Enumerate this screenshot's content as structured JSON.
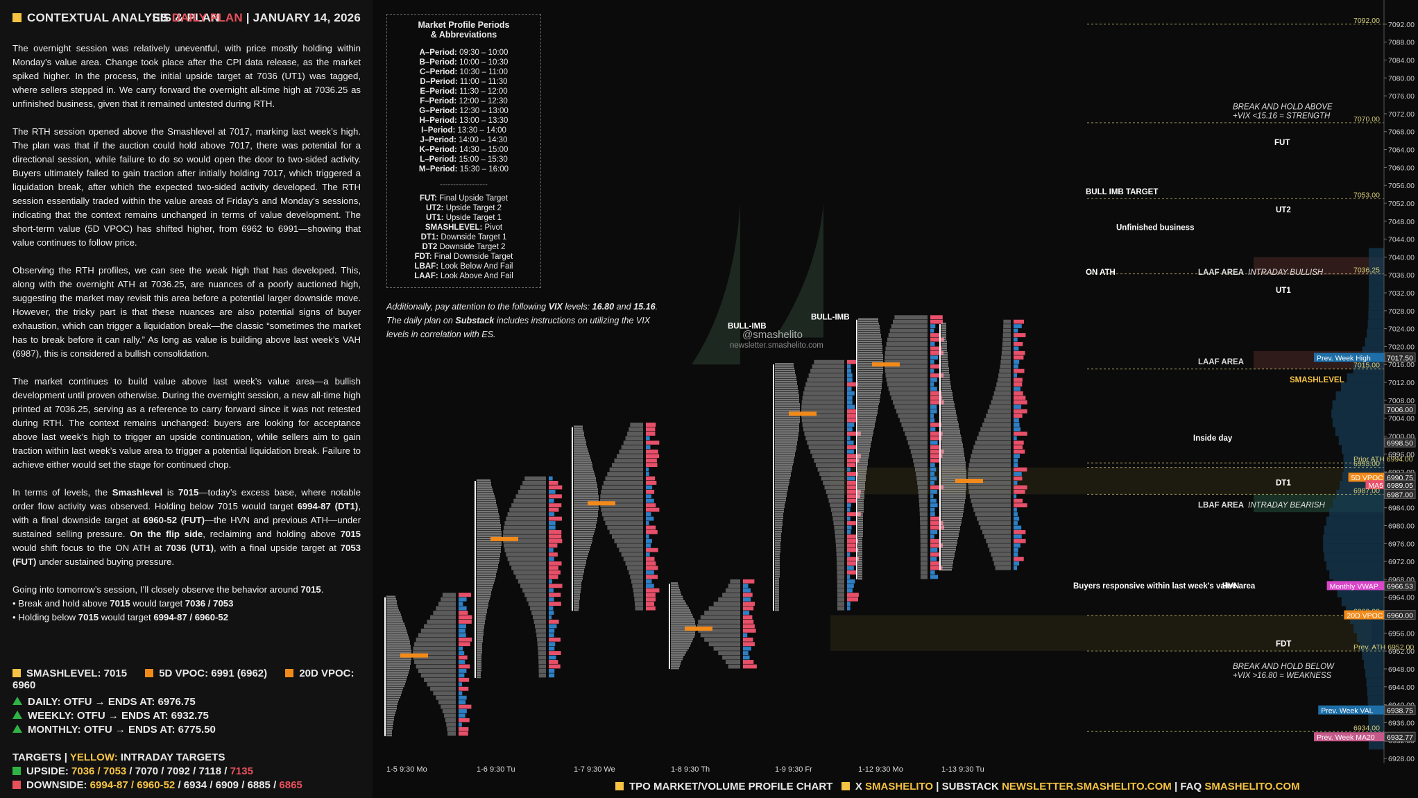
{
  "header": {
    "title": "CONTEXTUAL ANALYSIS & PLAN",
    "plan_prefix": "ES",
    "plan_label": "DAILY PLAN",
    "date": "JANUARY 14, 2026"
  },
  "paragraphs": [
    "The overnight session was relatively uneventful, with price mostly holding within Monday’s value area. Change took place after the CPI data release, as the market spiked higher. In the process, the initial upside target at 7036 (UT1) was tagged, where sellers stepped in. We carry forward the overnight all-time high at 7036.25 as unfinished business, given that it remained untested during RTH.",
    "The RTH session opened above the Smashlevel at 7017, marking last week’s high. The plan was that if the auction could hold above 7017, there was potential for a directional session, while failure to do so would open the door to two-sided activity. Buyers ultimately failed to gain traction after initially holding 7017, which triggered a liquidation break, after which the expected two-sided activity developed. The RTH session essentially traded within the value areas of Friday’s and Monday’s sessions, indicating that the context remains unchanged in terms of value development. The short-term value (5D VPOC) has shifted higher, from 6962 to 6991—showing that value continues to follow price.",
    "Observing the RTH profiles, we can see the weak high that has developed. This, along with the overnight ATH at 7036.25, are nuances of a poorly auctioned high, suggesting the market may revisit this area before a potential larger downside move. However, the tricky part is that these nuances are also potential signs of buyer exhaustion, which can trigger a liquidation break—the classic “sometimes the market has to break before it can rally.” As long as value is building above last week’s VAH (6987), this is considered a bullish consolidation.",
    "The market continues to build value above last week’s value area—a bullish development until proven otherwise. During the overnight session, a new all-time high printed at 7036.25, serving as a reference to carry forward since it was not retested during RTH. The context remains unchanged: buyers are looking for acceptance above last week’s high to trigger an upside continuation, while sellers aim to gain traction within last week’s value area to trigger a potential liquidation break. Failure to achieve either would set the stage for continued chop."
  ],
  "levels_paragraph": {
    "t1": "In terms of levels, the ",
    "smash": "Smashlevel",
    "t2": " is ",
    "smash_val": "7015",
    "t3": "—today’s excess base, where notable order flow activity was observed. Holding below 7015 would target ",
    "dt1": "6994-87 (DT1)",
    "t4": ", with a final downside target at ",
    "fdt": "6960-52 (FUT)",
    "t5": "—the HVN and previous ATH—under sustained selling pressure. ",
    "flip": "On the flip side",
    "t6": ", reclaiming and holding above ",
    "v7015": "7015",
    "t7": " would shift focus to the ON ATH at ",
    "ut1": "7036 (UT1)",
    "t8": ", with a final upside target at ",
    "fut": "7053 (FUT)",
    "t9": " under sustained buying pressure."
  },
  "closing": {
    "intro_a": "Going into tomorrow’s session, I’ll closely observe the behavior around ",
    "intro_level": "7015",
    "intro_b": ".",
    "b1_a": "• Break and hold above ",
    "b1_level": "7015",
    "b1_b": " would target ",
    "b1_targets": "7036 / 7053",
    "b2_a": "• Holding below ",
    "b2_level": "7015",
    "b2_b": " would target ",
    "b2_targets": "6994-87 / 6960-52"
  },
  "legend": {
    "smash": "SMASHLEVEL: 7015",
    "vpoc5": "5D VPOC: 6991 (6962)",
    "vpoc20": "20D VPOC: 6960",
    "colors": {
      "smash": "#f6c342",
      "vpoc5": "#f28a1a",
      "vpoc20": "#f28a1a"
    }
  },
  "trends": [
    {
      "label": "DAILY: OTFU",
      "arrow": "→",
      "end": "ENDS AT: 6976.75"
    },
    {
      "label": "WEEKLY: OTFU",
      "arrow": "→",
      "end": "ENDS AT: 6932.75"
    },
    {
      "label": "MONTHLY: OTFU",
      "arrow": "→",
      "end": "ENDS AT: 6775.50"
    }
  ],
  "targets": {
    "title": "TARGETS",
    "sep": "|",
    "yellow_label": "YELLOW:",
    "intraday": "INTRADAY TARGETS",
    "upside_label": "UPSIDE:",
    "upside_yellow": "7036 / 7053",
    "upside_rest": " / 7070 / 7092 / 7118 / ",
    "upside_red": "7135",
    "downside_label": "DOWNSIDE:",
    "downside_yellow": "6994-87 / 6960-52",
    "downside_rest": " / 6934 / 6909 / 6885 / ",
    "downside_red": "6865"
  },
  "abbrev_box": {
    "title1": "Market Profile Periods",
    "title2": "& Abbreviations",
    "periods": [
      [
        "A–Period:",
        "09:30 – 10:00"
      ],
      [
        "B–Period:",
        "10:00 – 10:30"
      ],
      [
        "C–Period:",
        "10:30 – 11:00"
      ],
      [
        "D–Period:",
        "11:00 – 11:30"
      ],
      [
        "E–Period:",
        "11:30 – 12:00"
      ],
      [
        "F–Period:",
        "12:00 – 12:30"
      ],
      [
        "G–Period:",
        "12:30 – 13:00"
      ],
      [
        "H–Period:",
        "13:00 – 13:30"
      ],
      [
        "I–Period:",
        "13:30 – 14:00"
      ],
      [
        "J–Period:",
        "14:00 – 14:30"
      ],
      [
        "K–Period:",
        "14:30 – 15:00"
      ],
      [
        "L–Period:",
        "15:00 – 15:30"
      ],
      [
        "M–Period:",
        "15:30 – 16:00"
      ]
    ],
    "sep": "------------------",
    "abbrevs": [
      [
        "FUT:",
        "Final Upside Target"
      ],
      [
        "UT2:",
        "Upside Target 2"
      ],
      [
        "UT1:",
        "Upside Target 1"
      ],
      [
        "SMASHLEVEL:",
        "Pivot"
      ],
      [
        "DT1:",
        "Downside Target 1"
      ],
      [
        "DT2",
        "Downside Target 2"
      ],
      [
        "FDT:",
        "Final Downside Target"
      ],
      [
        "LBAF:",
        "Look Below And Fail"
      ],
      [
        "LAAF:",
        "Look Above And Fail"
      ]
    ]
  },
  "note": {
    "a": "Additionally, pay attention to the following ",
    "vix": "VIX",
    "b": " levels: ",
    "v1": "16.80",
    "c": " and ",
    "v2": "15.16",
    "d": ". The daily plan on ",
    "sub": "Substack",
    "e": " includes instructions on utilizing the VIX levels in correlation with ES."
  },
  "watermark": {
    "handle": "@smashelito",
    "url": "newsletter.smashelito.com"
  },
  "footer": {
    "chart_label": "TPO MARKET/VOLUME PROFILE CHART",
    "x_label": "X",
    "x_handle": "SMASHELITO",
    "sep": "|",
    "substack_label": "SUBSTACK",
    "substack_url": "NEWSLETTER.SMASHELITO.COM",
    "faq_label": "FAQ",
    "faq_url": "SMASHELITO.COM"
  },
  "chart_data": {
    "type": "table",
    "description_kind": "TPO market/volume profile",
    "ylim": [
      6928,
      7094
    ],
    "y_ticks": [
      6928,
      6932,
      6936,
      6940,
      6944,
      6948,
      6952,
      6956,
      6960,
      6964,
      6968,
      6972,
      6976,
      6980,
      6984,
      6988,
      6992,
      6996,
      7000,
      7004,
      7008,
      7012,
      7016,
      7020,
      7024,
      7028,
      7032,
      7036,
      7040,
      7044,
      7048,
      7052,
      7056,
      7060,
      7064,
      7068,
      7072,
      7076,
      7080,
      7084,
      7088,
      7092
    ],
    "sessions": [
      {
        "label": "1-5  9:30 Mo",
        "low": 6933,
        "high": 6964,
        "poc": 6951
      },
      {
        "label": "1-6  9:30 Tu",
        "low": 6946,
        "high": 6990,
        "poc": 6977
      },
      {
        "label": "1-7  9:30 We",
        "low": 6961,
        "high": 7002,
        "poc": 6985
      },
      {
        "label": "1-8  9:30 Th",
        "low": 6948,
        "high": 6967,
        "poc": 6957
      },
      {
        "label": "1-9  9:30 Fr",
        "low": 6961,
        "high": 7016,
        "poc": 7005
      },
      {
        "label": "1-12  9:30 Mo",
        "low": 6968,
        "high": 7026,
        "poc": 7016
      },
      {
        "label": "1-13  9:30 Tu",
        "low": 6970,
        "high": 7025,
        "poc": 6990
      }
    ],
    "levels": [
      {
        "name": "7092.00",
        "value": 7092.0
      },
      {
        "name": "7070.00",
        "value": 7070.0
      },
      {
        "name": "7053.00",
        "value": 7053.0
      },
      {
        "name": "7036.25",
        "value": 7036.25
      },
      {
        "name": "Prev. Week High",
        "value": 7017.5
      },
      {
        "name": "7015.00",
        "value": 7015.0
      },
      {
        "name": "Prior ATH 6994.00",
        "value": 6994.0
      },
      {
        "name": "6993.00",
        "value": 6993.0
      },
      {
        "name": "5D VPOC",
        "value": 6990.75
      },
      {
        "name": "MA5",
        "value": 6989.05
      },
      {
        "name": "6987.00",
        "value": 6987.0
      },
      {
        "name": "Monthly VWAP",
        "value": 6966.53
      },
      {
        "name": "6960.00",
        "value": 6960.0
      },
      {
        "name": "20D VPOC",
        "value": 6960.0
      },
      {
        "name": "Prev. ATH 6952.00",
        "value": 6952.0
      },
      {
        "name": "Prev. Week VAL",
        "value": 6938.75
      },
      {
        "name": "6934.00",
        "value": 6934.0
      },
      {
        "name": "Prev. Week MA20",
        "value": 6932.77
      }
    ],
    "price_tags": [
      "7017.50",
      "7006.00",
      "6998.50",
      "6990.75",
      "6989.05",
      "6987.00",
      "6966.53",
      "6960.00",
      "6938.75",
      "6932.77"
    ],
    "annotations": [
      "BREAK AND HOLD ABOVE",
      "+VIX <15.16 = STRENGTH",
      "FUT",
      "BULL IMB TARGET",
      "UT2",
      "Unfinished business",
      "ON ATH",
      "LAAF AREA",
      "INTRADAY BULLISH",
      "UT1",
      "BULL-IMB",
      "BULL-IMB",
      "LAAF AREA",
      "SMASHLEVEL",
      "Inside day",
      "DT1",
      "LBAF AREA",
      "INTRADAY BEARISH",
      "Buyers responsive within last week's value area",
      "HVN",
      "FDT",
      "BREAK AND HOLD BELOW",
      "+VIX >16.80 = WEAKNESS"
    ]
  }
}
